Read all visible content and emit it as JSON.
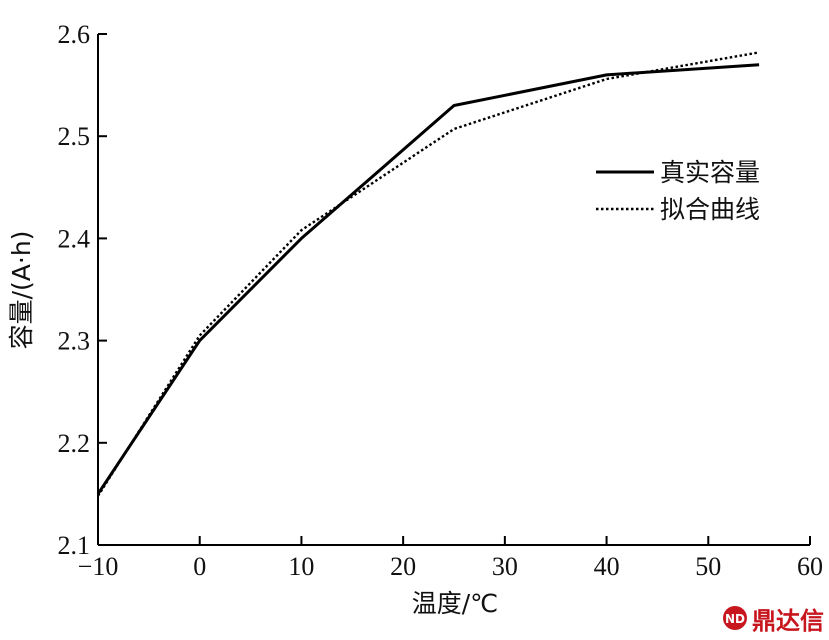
{
  "chart_data": {
    "type": "line",
    "xlabel": "温度/℃",
    "ylabel": "容量/(A·h)",
    "xlim": [
      -10,
      60
    ],
    "ylim": [
      2.1,
      2.6
    ],
    "xticks": [
      -10,
      0,
      10,
      20,
      30,
      40,
      50,
      60
    ],
    "xtick_labels": [
      "−10",
      "0",
      "10",
      "20",
      "30",
      "40",
      "50",
      "60"
    ],
    "yticks": [
      2.1,
      2.2,
      2.3,
      2.4,
      2.5,
      2.6
    ],
    "ytick_labels": [
      "2.1",
      "2.2",
      "2.3",
      "2.4",
      "2.5",
      "2.6"
    ],
    "grid": false,
    "legend_position": "right",
    "series": [
      {
        "name": "真实容量",
        "style": "solid",
        "color": "#000000",
        "x": [
          -10,
          0,
          10,
          25,
          40,
          55
        ],
        "y": [
          2.15,
          2.3,
          2.4,
          2.53,
          2.56,
          2.57
        ]
      },
      {
        "name": "拟合曲线",
        "style": "dotted",
        "color": "#000000",
        "x": [
          -10,
          0,
          10,
          25,
          40,
          55
        ],
        "y": [
          2.148,
          2.305,
          2.408,
          2.507,
          2.556,
          2.582
        ]
      }
    ]
  },
  "watermark": {
    "text": "鼎达信",
    "color": "#c8161e",
    "icon": "ndx-logo-icon"
  }
}
